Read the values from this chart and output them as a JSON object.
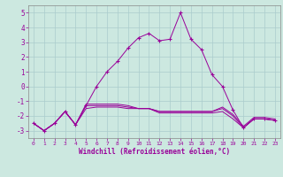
{
  "xlabel": "Windchill (Refroidissement éolien,°C)",
  "x_values": [
    0,
    1,
    2,
    3,
    4,
    5,
    6,
    7,
    8,
    9,
    10,
    11,
    12,
    13,
    14,
    15,
    16,
    17,
    18,
    19,
    20,
    21,
    22,
    23
  ],
  "line1": [
    -2.5,
    -3.0,
    -2.5,
    -1.7,
    -2.6,
    -1.5,
    -1.4,
    -1.4,
    -1.4,
    -1.5,
    -1.5,
    -1.5,
    -1.8,
    -1.8,
    -1.8,
    -1.8,
    -1.8,
    -1.8,
    -1.7,
    -2.2,
    -2.8,
    -2.2,
    -2.2,
    -2.3
  ],
  "line2": [
    -2.5,
    -3.0,
    -2.5,
    -1.7,
    -2.6,
    -1.3,
    -1.3,
    -1.3,
    -1.3,
    -1.4,
    -1.5,
    -1.5,
    -1.7,
    -1.7,
    -1.7,
    -1.7,
    -1.7,
    -1.7,
    -1.5,
    -2.0,
    -2.8,
    -2.2,
    -2.2,
    -2.3
  ],
  "line3": [
    -2.5,
    -3.0,
    -2.5,
    -1.7,
    -2.6,
    -1.2,
    -1.2,
    -1.2,
    -1.2,
    -1.3,
    -1.5,
    -1.5,
    -1.7,
    -1.7,
    -1.7,
    -1.7,
    -1.7,
    -1.7,
    -1.4,
    -1.9,
    -2.7,
    -2.1,
    -2.1,
    -2.2
  ],
  "main_line": [
    -2.5,
    -3.0,
    -2.5,
    -1.7,
    -2.6,
    -1.3,
    0.0,
    1.0,
    1.7,
    2.6,
    3.3,
    3.6,
    3.1,
    3.2,
    5.0,
    3.2,
    2.5,
    0.8,
    0.0,
    -1.6,
    -2.8,
    -2.2,
    -2.2,
    -2.3
  ],
  "bg_color": "#cce8e0",
  "line_color": "#990099",
  "grid_color": "#aacccc",
  "ylim": [
    -3.5,
    5.5
  ],
  "yticks": [
    -3,
    -2,
    -1,
    0,
    1,
    2,
    3,
    4,
    5
  ],
  "xticks": [
    0,
    1,
    2,
    3,
    4,
    5,
    6,
    7,
    8,
    9,
    10,
    11,
    12,
    13,
    14,
    15,
    16,
    17,
    18,
    19,
    20,
    21,
    22,
    23
  ]
}
